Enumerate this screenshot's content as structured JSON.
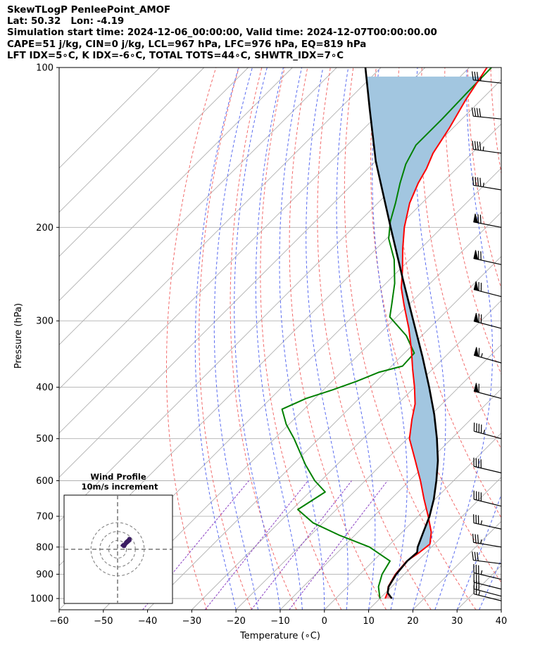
{
  "header": {
    "line1": "SkewTLogP PenleePoint_AMOF",
    "line2": "Lat: 50.32   Lon: -4.19",
    "line3": "Simulation start time: 2024-12-06_00:00:00, Valid time: 2024-12-07T00:00:00.00",
    "line4": "CAPE=51 j/kg, CIN=0 j/kg, LCL=967 hPa, LFC=976 hPa, EQ=819 hPa",
    "line5": "LFT IDX=5∘C, K IDX=-6∘C, TOTAL TOTS=44∘C, SHWTR_IDX=7∘C"
  },
  "chart_data": {
    "type": "skewt",
    "xlabel": "Temperature (∘C)",
    "ylabel": "Pressure (hPa)",
    "xlim": [
      -60,
      40
    ],
    "ylim": [
      1050,
      100
    ],
    "x_ticks": [
      -60,
      -50,
      -40,
      -30,
      -20,
      -10,
      0,
      10,
      20,
      30,
      40
    ],
    "x_tick_labels": [
      "−60",
      "−50",
      "−40",
      "−30",
      "−20",
      "−10",
      "0",
      "10",
      "20",
      "30",
      "40"
    ],
    "y_ticks": [
      1000,
      900,
      800,
      700,
      600,
      500,
      400,
      300,
      200,
      100
    ],
    "y_tick_labels": [
      "1000",
      "900",
      "800",
      "700",
      "600",
      "500",
      "400",
      "300",
      "200",
      "100"
    ],
    "grid": true,
    "series": [
      {
        "role": "temperature",
        "color": "#ff0000",
        "points": [
          [
            1000,
            11.2
          ],
          [
            975,
            10.4
          ],
          [
            950,
            9.2
          ],
          [
            900,
            8.0
          ],
          [
            850,
            7.6
          ],
          [
            820,
            8.5
          ],
          [
            790,
            9.0
          ],
          [
            750,
            6.6
          ],
          [
            700,
            2.3
          ],
          [
            650,
            -2.5
          ],
          [
            600,
            -7.5
          ],
          [
            550,
            -13.2
          ],
          [
            500,
            -19.5
          ],
          [
            460,
            -23.3
          ],
          [
            430,
            -26.1
          ],
          [
            400,
            -30.0
          ],
          [
            370,
            -34.5
          ],
          [
            340,
            -39.2
          ],
          [
            310,
            -44.6
          ],
          [
            280,
            -51.0
          ],
          [
            260,
            -55.5
          ],
          [
            240,
            -59.4
          ],
          [
            220,
            -63.9
          ],
          [
            200,
            -68.5
          ],
          [
            180,
            -72.8
          ],
          [
            165,
            -75.4
          ],
          [
            155,
            -76.8
          ],
          [
            145,
            -78.8
          ],
          [
            130,
            -80.8
          ],
          [
            115,
            -83.5
          ],
          [
            100,
            -86.0
          ]
        ]
      },
      {
        "role": "dewpoint",
        "color": "#008000",
        "points": [
          [
            1000,
            10.0
          ],
          [
            950,
            7.0
          ],
          [
            900,
            5.0
          ],
          [
            850,
            3.8
          ],
          [
            800,
            -4.0
          ],
          [
            760,
            -13.5
          ],
          [
            720,
            -22.3
          ],
          [
            680,
            -28.7
          ],
          [
            630,
            -26.5
          ],
          [
            600,
            -31.4
          ],
          [
            560,
            -37.1
          ],
          [
            500,
            -45.6
          ],
          [
            470,
            -50.6
          ],
          [
            440,
            -55.0
          ],
          [
            420,
            -52.0
          ],
          [
            405,
            -48.0
          ],
          [
            390,
            -44.5
          ],
          [
            375,
            -41.5
          ],
          [
            365,
            -37.5
          ],
          [
            345,
            -37.8
          ],
          [
            320,
            -43.5
          ],
          [
            295,
            -51.5
          ],
          [
            280,
            -53.8
          ],
          [
            255,
            -58.0
          ],
          [
            230,
            -63.5
          ],
          [
            210,
            -69.5
          ],
          [
            195,
            -73.0
          ],
          [
            180,
            -76.0
          ],
          [
            165,
            -79.5
          ],
          [
            152,
            -82.5
          ],
          [
            140,
            -84.5
          ],
          [
            125,
            -84.5
          ],
          [
            112,
            -84.8
          ],
          [
            100,
            -85.0
          ]
        ]
      },
      {
        "role": "parcel",
        "color": "#000000",
        "points": [
          [
            1000,
            12.7
          ],
          [
            976,
            10.5
          ],
          [
            950,
            9.3
          ],
          [
            900,
            8.2
          ],
          [
            850,
            7.7
          ],
          [
            819,
            8.0
          ],
          [
            800,
            6.9
          ],
          [
            750,
            4.8
          ],
          [
            700,
            2.6
          ],
          [
            650,
            -0.3
          ],
          [
            600,
            -3.9
          ],
          [
            550,
            -8.1
          ],
          [
            500,
            -13.3
          ],
          [
            450,
            -19.4
          ],
          [
            400,
            -26.7
          ],
          [
            350,
            -35.2
          ],
          [
            300,
            -45.3
          ],
          [
            250,
            -57.2
          ],
          [
            200,
            -71.6
          ],
          [
            150,
            -90.0
          ],
          [
            120,
            -103.0
          ],
          [
            100,
            -113.5
          ]
        ]
      }
    ],
    "shaded": {
      "region": "CAPE",
      "color": "#a2c6e0"
    },
    "wind_barbs": [
      {
        "p": 1010,
        "u": -12,
        "v": 3
      },
      {
        "p": 990,
        "u": -15,
        "v": 4
      },
      {
        "p": 960,
        "u": -16,
        "v": 4
      },
      {
        "p": 920,
        "u": -17,
        "v": 4
      },
      {
        "p": 860,
        "u": -16,
        "v": 2
      },
      {
        "p": 800,
        "u": -18,
        "v": 3
      },
      {
        "p": 740,
        "u": -18,
        "v": 4
      },
      {
        "p": 670,
        "u": -20,
        "v": 5
      },
      {
        "p": 580,
        "u": -21,
        "v": 5
      },
      {
        "p": 500,
        "u": -22,
        "v": 6
      },
      {
        "p": 420,
        "u": -30,
        "v": 8
      },
      {
        "p": 360,
        "u": -32,
        "v": 9
      },
      {
        "p": 310,
        "u": -34,
        "v": 9
      },
      {
        "p": 270,
        "u": -35,
        "v": 9
      },
      {
        "p": 235,
        "u": -36,
        "v": 8
      },
      {
        "p": 200,
        "u": -36,
        "v": 7
      },
      {
        "p": 170,
        "u": -24,
        "v": 4
      },
      {
        "p": 145,
        "u": -22,
        "v": 3
      },
      {
        "p": 125,
        "u": -20,
        "v": 2
      },
      {
        "p": 107,
        "u": -18,
        "v": 2
      }
    ],
    "hodograph": {
      "title": "Wind Profile",
      "subtitle": "10m/s increment",
      "rings_ms": [
        10,
        20,
        30
      ],
      "color": "#3b1d63"
    }
  }
}
